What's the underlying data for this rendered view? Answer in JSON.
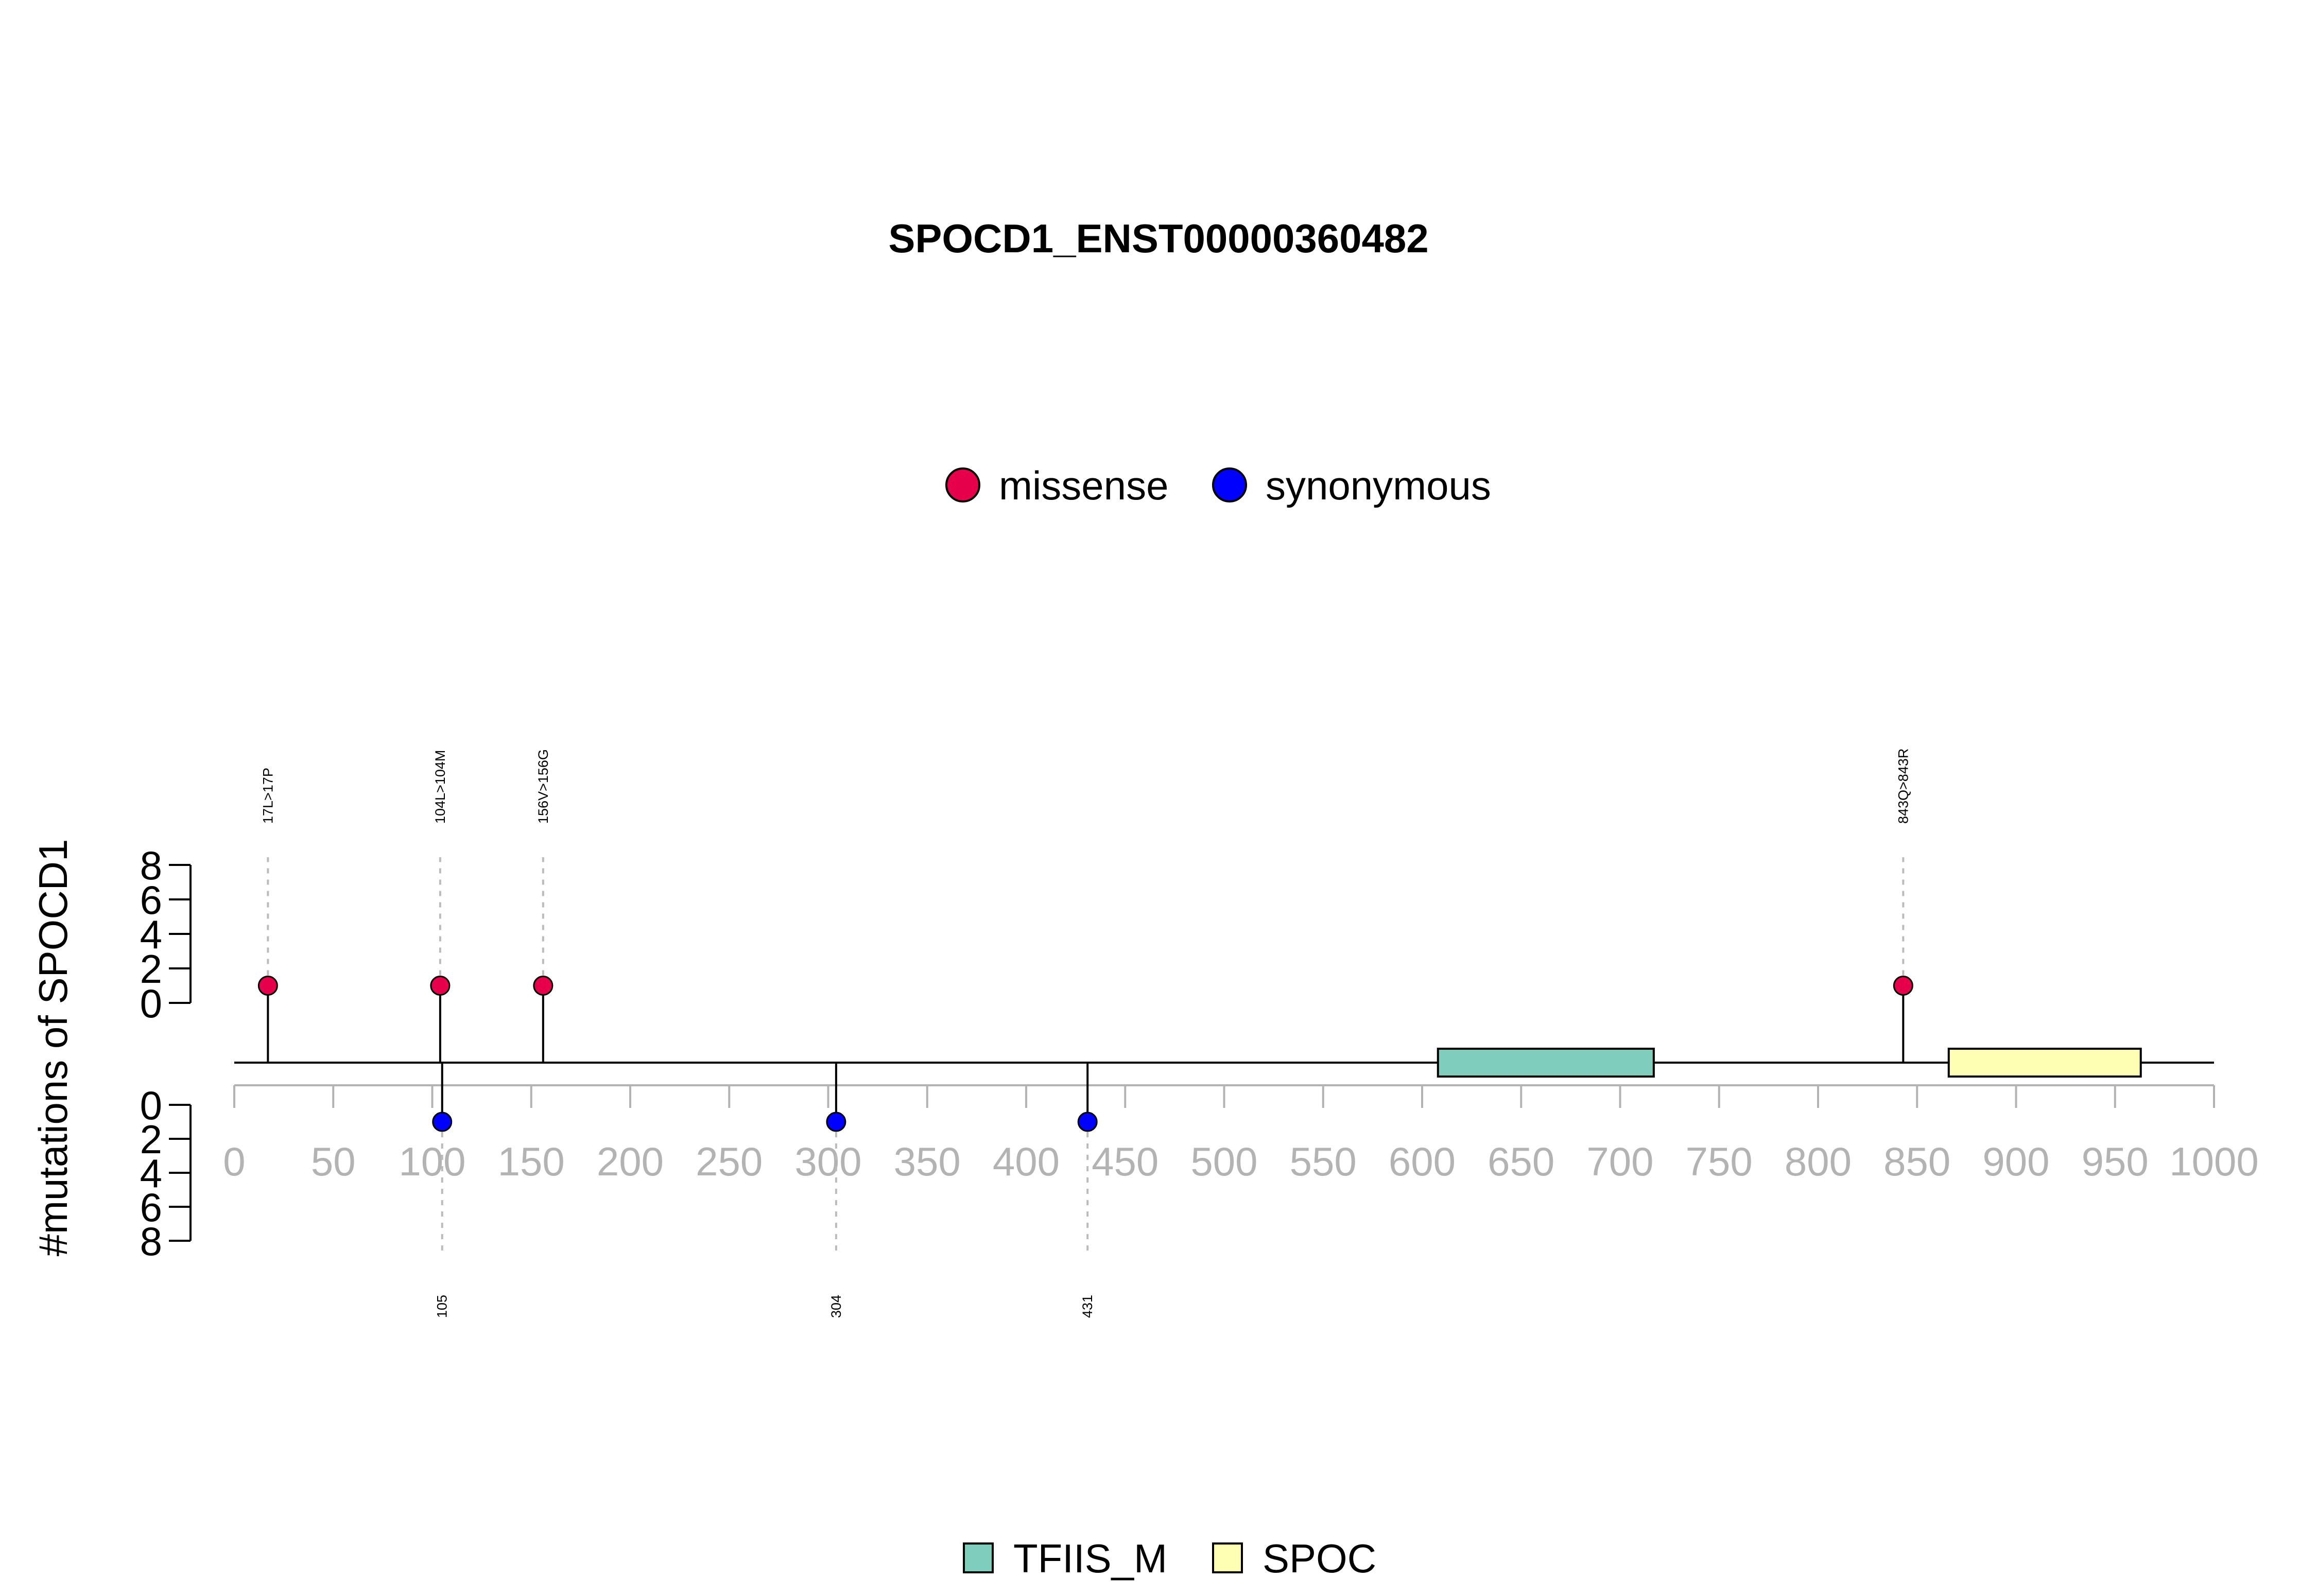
{
  "chart_data": {
    "type": "lollipop",
    "title": "SPOCD1_ENST00000360482",
    "ylabel": "#mutations of SPOCD1",
    "protein_length": 1000,
    "xlim": [
      0,
      1000
    ],
    "xticks": [
      0,
      50,
      100,
      150,
      200,
      250,
      300,
      350,
      400,
      450,
      500,
      550,
      600,
      650,
      700,
      750,
      800,
      850,
      900,
      950,
      1000
    ],
    "yticks": [
      0,
      2,
      4,
      6,
      8
    ],
    "ylim": [
      0,
      8
    ],
    "legend": {
      "placement": "top-center",
      "entries": [
        {
          "label": "missense",
          "color": "#e6004c"
        },
        {
          "label": "synonymous",
          "color": "#0000ff"
        }
      ]
    },
    "series": [
      {
        "name": "missense",
        "color": "#e6004c",
        "side": "top",
        "points": [
          {
            "position": 17,
            "count": 1,
            "label": "17L>17P"
          },
          {
            "position": 104,
            "count": 1,
            "label": "104L>104M"
          },
          {
            "position": 156,
            "count": 1,
            "label": "156V>156G"
          },
          {
            "position": 843,
            "count": 1,
            "label": "843Q>843R"
          }
        ]
      },
      {
        "name": "synonymous",
        "color": "#0000ff",
        "side": "bottom",
        "points": [
          {
            "position": 105,
            "count": 1,
            "label": "105"
          },
          {
            "position": 304,
            "count": 1,
            "label": "304"
          },
          {
            "position": 431,
            "count": 1,
            "label": "431"
          }
        ]
      }
    ],
    "domains": [
      {
        "name": "TFIIS_M",
        "start": 608,
        "end": 717,
        "color": "#7fcdbb"
      },
      {
        "name": "SPOC",
        "start": 866,
        "end": 963,
        "color": "#ffffb3"
      }
    ],
    "domain_legend": {
      "placement": "bottom-center"
    }
  }
}
